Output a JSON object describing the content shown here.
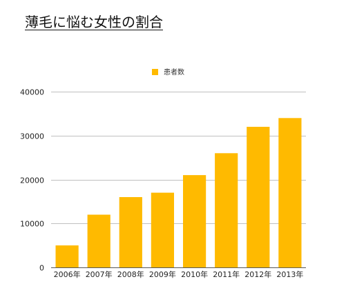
{
  "chart_data": {
    "type": "bar",
    "title": "薄毛に悩む女性の割合",
    "xlabel": "",
    "ylabel": "",
    "categories": [
      "2006年",
      "2007年",
      "2008年",
      "2009年",
      "2010年",
      "2011年",
      "2012年",
      "2013年"
    ],
    "series": [
      {
        "name": "患者数",
        "values": [
          5000,
          12000,
          16000,
          17000,
          21000,
          26000,
          32000,
          34000
        ]
      }
    ],
    "ylim": [
      0,
      40000
    ],
    "yticks": [
      0,
      10000,
      20000,
      30000,
      40000
    ],
    "grid": true,
    "legend": "top-center",
    "colors": {
      "bar": "#FFBA00",
      "grid": "#BFBFBF",
      "axis": "#555555"
    }
  }
}
